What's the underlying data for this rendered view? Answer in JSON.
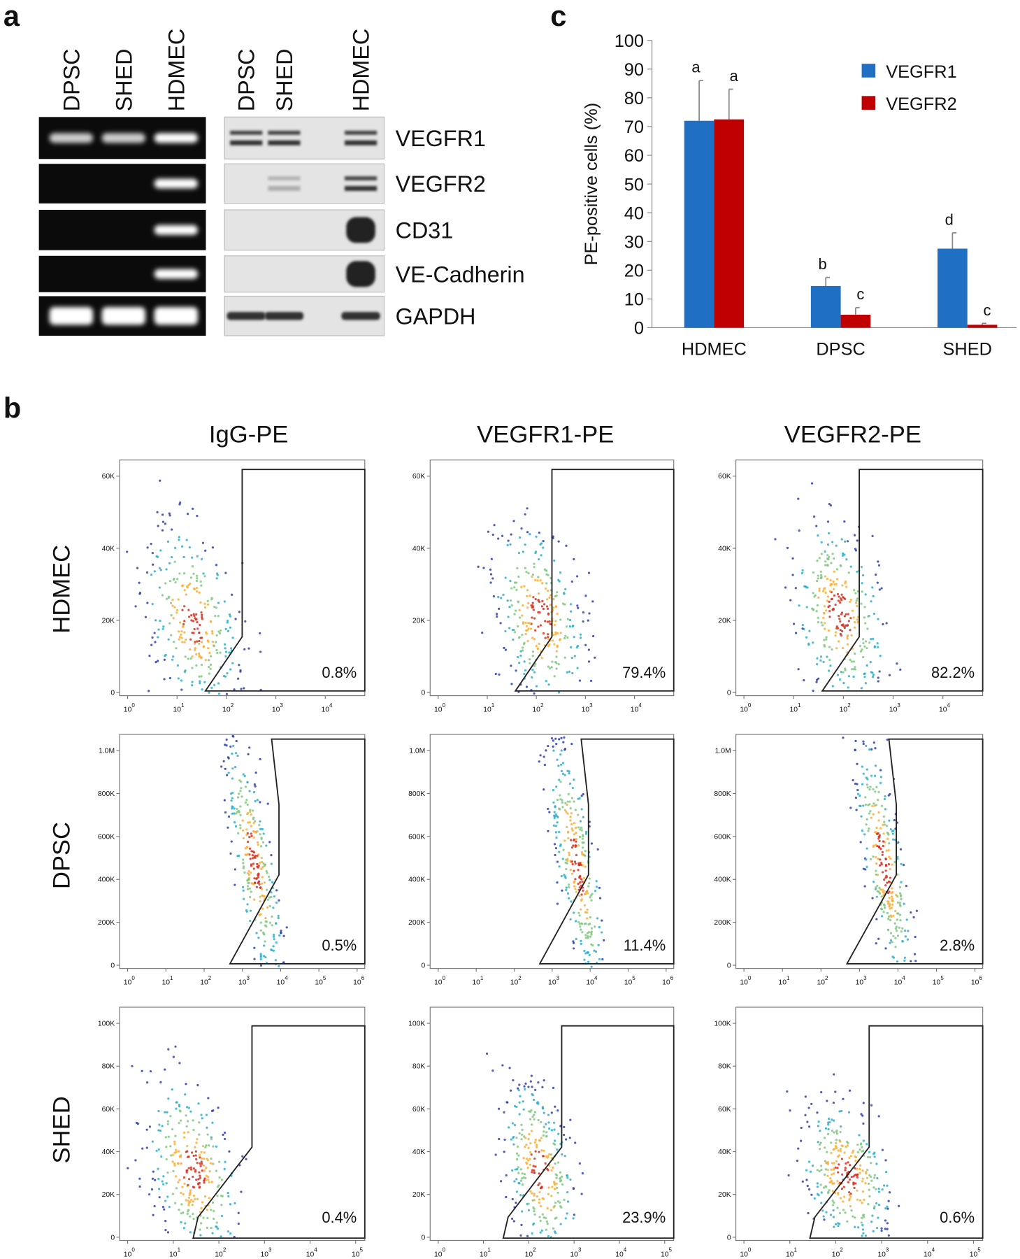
{
  "panel_labels": [
    "a",
    "b",
    "c"
  ],
  "panel_a": {
    "gel_lanes": [
      "DPSC",
      "SHED",
      "HDMEC"
    ],
    "blot_lanes": [
      "DPSC",
      "SHED",
      "HDMEC"
    ],
    "markers": [
      "VEGFR1",
      "VEGFR2",
      "CD31",
      "VE-Cadherin",
      "GAPDH"
    ]
  },
  "chart_data": {
    "type": "bar",
    "ylabel": "PE-positive cells (%)",
    "categories": [
      "HDMEC",
      "DPSC",
      "SHED"
    ],
    "series": [
      {
        "name": "VEGFR1",
        "color": "#1f6fc5",
        "values": [
          72,
          14.5,
          27.5
        ],
        "errors": [
          14,
          3,
          5.5
        ],
        "annotations": [
          "a",
          "b",
          "d"
        ]
      },
      {
        "name": "VEGFR2",
        "color": "#c00000",
        "values": [
          72.5,
          4.5,
          1
        ],
        "errors": [
          10.5,
          2.5,
          0.5
        ],
        "annotations": [
          "a",
          "c",
          "c"
        ]
      }
    ],
    "ylim": [
      0,
      100
    ],
    "yticks": [
      0,
      10,
      20,
      30,
      40,
      50,
      60,
      70,
      80,
      90,
      100
    ],
    "legend": "top-right"
  },
  "panel_b": {
    "columns": [
      "IgG-PE",
      "VEGFR1-PE",
      "VEGFR2-PE"
    ],
    "rows": [
      "HDMEC",
      "DPSC",
      "SHED"
    ],
    "percentages": [
      [
        "0.8%",
        "79.4%",
        "82.2%"
      ],
      [
        "0.5%",
        "11.4%",
        "2.8%"
      ],
      [
        "0.4%",
        "23.9%",
        "0.6%"
      ]
    ],
    "x_tick_base": "10",
    "x_tick_exponents": [
      [
        "0",
        "1",
        "2",
        "3",
        "4"
      ],
      [
        "0",
        "1",
        "2",
        "3",
        "4",
        "5",
        "6"
      ],
      [
        "0",
        "1",
        "2",
        "3",
        "4",
        "5"
      ]
    ],
    "y_ticks": [
      [
        "0",
        "20K",
        "40K",
        "60K"
      ],
      [
        "0",
        "200K",
        "400K",
        "600K",
        "800K",
        "1.0M"
      ],
      [
        "0",
        "20K",
        "40K",
        "60K",
        "80K",
        "100K"
      ]
    ]
  }
}
